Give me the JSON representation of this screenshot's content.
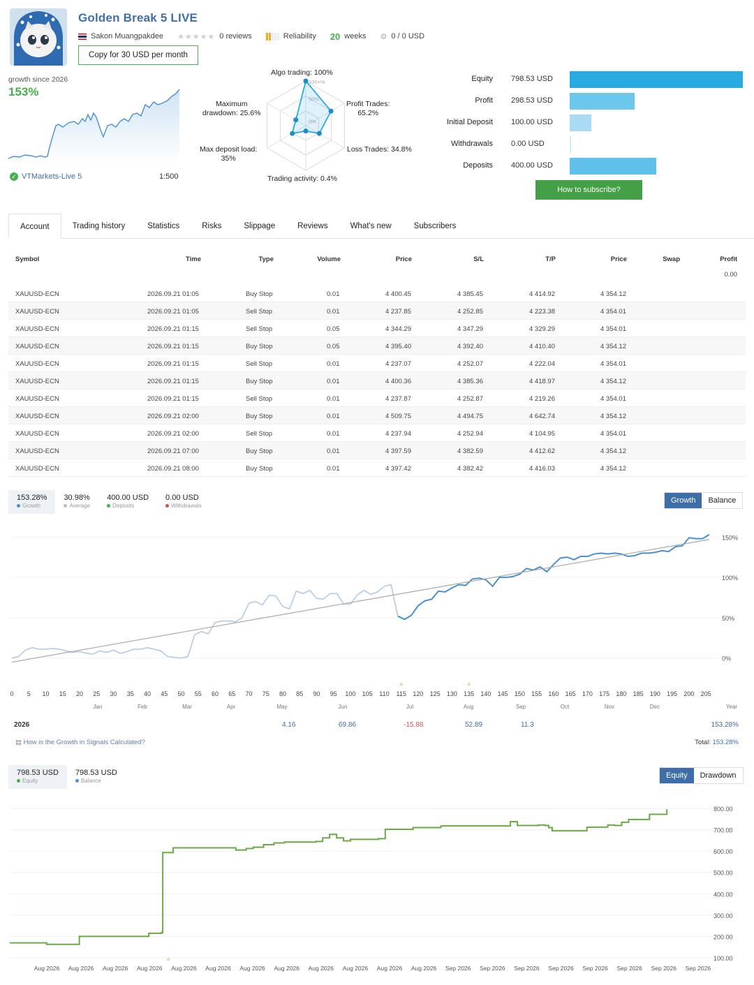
{
  "header": {
    "title": "Golden Break 5 LIVE",
    "author": "Sakon Muangpakdee",
    "reviews": "0 reviews",
    "reliability": "Reliability",
    "weeks_num": "20",
    "weeks_label": "weeks",
    "subscribers_usd": "0 / 0 USD",
    "copy_button": "Copy for 30 USD per month"
  },
  "growth_mini": {
    "label": "growth since 2026",
    "value": "153%",
    "broker": "VTMarkets-Live 5",
    "leverage": "1:500"
  },
  "radar": {
    "algo": "Algo trading: 100%",
    "profit_trades": "Profit Trades:\n65.2%",
    "loss_trades": "Loss Trades: 34.8%",
    "activity": "Trading activity: 0.4%",
    "deposit_load": "Max deposit load:\n35%",
    "drawdown": "Maximum\ndrawdown: 25.6%",
    "ring_100": "100+%",
    "ring_50": "50%",
    "ring_0": "0%",
    "values": [
      1.0,
      0.652,
      0.348,
      0.004,
      0.35,
      0.256
    ]
  },
  "stats": [
    {
      "label": "Equity",
      "value": "798.53 USD",
      "amount": 798.53,
      "color": "#29abe2"
    },
    {
      "label": "Profit",
      "value": "298.53 USD",
      "amount": 298.53,
      "color": "#6cc7ec"
    },
    {
      "label": "Initial Deposit",
      "value": "100.00 USD",
      "amount": 100.0,
      "color": "#a9dcf4"
    },
    {
      "label": "Withdrawals",
      "value": "0.00 USD",
      "amount": 0,
      "color": "#cfeaf8"
    },
    {
      "label": "Deposits",
      "value": "400.00 USD",
      "amount": 400.0,
      "color": "#5fc0ea"
    }
  ],
  "subscribe_button": "How to subscribe?",
  "tabs": [
    "Account",
    "Trading history",
    "Statistics",
    "Risks",
    "Slippage",
    "Reviews",
    "What's new",
    "Subscribers"
  ],
  "table": {
    "headers": [
      "Symbol",
      "Time",
      "Type",
      "Volume",
      "Price",
      "S/L",
      "T/P",
      "Price",
      "Swap",
      "Profit"
    ],
    "summary_profit": "0.00",
    "rows": [
      [
        "XAUUSD-ECN",
        "2026.09.21 01:05",
        "Buy Stop",
        "0.01",
        "4 400.45",
        "4 385.45",
        "4 414.92",
        "4 354.12"
      ],
      [
        "XAUUSD-ECN",
        "2026.09.21 01:05",
        "Sell Stop",
        "0.01",
        "4 237.85",
        "4 252.85",
        "4 223.38",
        "4 354.01"
      ],
      [
        "XAUUSD-ECN",
        "2026.09.21 01:15",
        "Sell Stop",
        "0.05",
        "4 344.29",
        "4 347.29",
        "4 329.29",
        "4 354.01"
      ],
      [
        "XAUUSD-ECN",
        "2026.09.21 01:15",
        "Buy Stop",
        "0.05",
        "4 395.40",
        "4 392.40",
        "4 410.40",
        "4 354.12"
      ],
      [
        "XAUUSD-ECN",
        "2026.09.21 01:15",
        "Sell Stop",
        "0.01",
        "4 237.07",
        "4 252.07",
        "4 222.04",
        "4 354.01"
      ],
      [
        "XAUUSD-ECN",
        "2026.09.21 01:15",
        "Buy Stop",
        "0.01",
        "4 400.36",
        "4 385.36",
        "4 418.97",
        "4 354.12"
      ],
      [
        "XAUUSD-ECN",
        "2026.09.21 01:15",
        "Sell Stop",
        "0.01",
        "4 237.87",
        "4 252.87",
        "4 219.26",
        "4 354.01"
      ],
      [
        "XAUUSD-ECN",
        "2026.09.21 02:00",
        "Buy Stop",
        "0.01",
        "4 509.75",
        "4 494.75",
        "4 642.74",
        "4 354.12"
      ],
      [
        "XAUUSD-ECN",
        "2026.09.21 02:00",
        "Sell Stop",
        "0.01",
        "4 237.94",
        "4 252.94",
        "4 104.95",
        "4 354.01"
      ],
      [
        "XAUUSD-ECN",
        "2026.09.21 07:00",
        "Buy Stop",
        "0.01",
        "4 397.59",
        "4 382.59",
        "4 412.62",
        "4 354.12"
      ],
      [
        "XAUUSD-ECN",
        "2026.09.21 08:00",
        "Buy Stop",
        "0.01",
        "4 397.42",
        "4 382.42",
        "4 416.03",
        "4 354.12"
      ]
    ]
  },
  "growth_chart": {
    "legend": [
      {
        "value": "153.28%",
        "label": "Growth",
        "color": "#4a90d9"
      },
      {
        "value": "30.98%",
        "label": "Average",
        "color": "#bbbbbb"
      },
      {
        "value": "400.00 USD",
        "label": "Deposits",
        "color": "#46b04a"
      },
      {
        "value": "0.00 USD",
        "label": "Withdrawals",
        "color": "#e74c3c"
      }
    ],
    "toggle": [
      "Growth",
      "Balance"
    ],
    "year_label": "Year",
    "year": "2026",
    "monthly": [
      {
        "month": "May",
        "value": "4.16"
      },
      {
        "month": "Jun",
        "value": "69.86"
      },
      {
        "month": "Jul",
        "value": "-15.88"
      },
      {
        "month": "Aug",
        "value": "52.89"
      },
      {
        "month": "Sep",
        "value": "11.3"
      }
    ],
    "year_total": "153.28%",
    "how_link": "How is the Growth in Signals Calculated?",
    "total_label": "Total:",
    "total_value": "153.28%"
  },
  "chart_data": [
    {
      "type": "line",
      "title": "",
      "xlabel": "",
      "ylabel": "",
      "x_ticks": [
        0,
        5,
        10,
        15,
        20,
        25,
        30,
        35,
        40,
        45,
        50,
        55,
        60,
        65,
        70,
        75,
        80,
        85,
        90,
        95,
        100,
        105,
        110,
        115,
        120,
        125,
        130,
        135,
        140,
        145,
        150,
        155,
        160,
        165,
        170,
        175,
        180,
        185,
        190,
        195,
        200,
        205
      ],
      "months": [
        "Jan",
        "Feb",
        "Mar",
        "Apr",
        "May",
        "Jun",
        "Jul",
        "Aug",
        "Sep",
        "Oct",
        "Nov",
        "Dec"
      ],
      "y_ticks": [
        "0%",
        "50%",
        "100%",
        "150%"
      ],
      "ylim": [
        -8,
        158
      ],
      "xlim": [
        0,
        206
      ],
      "series": [
        {
          "color": "#4a8fd0",
          "x": [
            0,
            2,
            4,
            6,
            8,
            10,
            12,
            14,
            16,
            18,
            20,
            22,
            24,
            26,
            28,
            30,
            32,
            34,
            36,
            38,
            40,
            42,
            44,
            46,
            48,
            50,
            52,
            54,
            56,
            58,
            60,
            62,
            64,
            66,
            68,
            70,
            72,
            74,
            76,
            78,
            80,
            82,
            84,
            86,
            88,
            90,
            92,
            94,
            96,
            98,
            100,
            102,
            104,
            106,
            108,
            110,
            112,
            114,
            116,
            118,
            120,
            122,
            124,
            126,
            128,
            130,
            132,
            134,
            136,
            138,
            140,
            142,
            144,
            146,
            148,
            150,
            152,
            154,
            156,
            158,
            160,
            162,
            164,
            166,
            168,
            170,
            172,
            174,
            176,
            178,
            180,
            182,
            184,
            186,
            188,
            190,
            192,
            194,
            196,
            198,
            200,
            202,
            204,
            206
          ],
          "y": [
            0,
            2,
            10,
            13,
            11,
            11,
            12,
            11,
            9,
            7,
            8,
            6,
            5,
            9,
            7,
            10,
            6,
            8,
            11,
            11,
            13,
            11,
            9,
            2,
            1,
            0,
            2,
            29,
            33,
            30,
            44,
            46,
            46,
            45,
            50,
            68,
            70,
            66,
            78,
            77,
            64,
            61,
            83,
            80,
            84,
            74,
            73,
            80,
            80,
            67,
            67,
            78,
            84,
            79,
            82,
            89,
            91,
            52,
            48,
            53,
            65,
            71,
            73,
            83,
            82,
            87,
            91,
            90,
            98,
            99,
            97,
            89,
            100,
            100,
            101,
            104,
            111,
            109,
            113,
            107,
            116,
            124,
            125,
            122,
            126,
            126,
            129,
            130,
            129,
            130,
            129,
            126,
            127,
            130,
            130,
            131,
            133,
            132,
            138,
            139,
            149,
            148,
            148,
            153
          ],
          "faded_until_x": 120
        },
        {
          "name": "Average",
          "color": "#a0a0a0",
          "x": [
            0,
            206
          ],
          "y": [
            -5,
            147
          ]
        }
      ]
    },
    {
      "type": "line",
      "title": "",
      "xlabel": "",
      "ylabel": "",
      "x_ticks": [
        "Aug 2026",
        "Aug 2026",
        "Aug 2026",
        "Aug 2026",
        "Aug 2026",
        "Aug 2026",
        "Aug 2026",
        "Aug 2026",
        "Aug 2026",
        "Aug 2026",
        "Aug 2026",
        "Aug 2026",
        "Sep 2026",
        "Sep 2026",
        "Sep 2026",
        "Sep 2026",
        "Sep 2026",
        "Sep 2026",
        "Sep 2026",
        "Sep 2026"
      ],
      "y_ticks": [
        "100.00",
        "200.00",
        "300.00",
        "400.00",
        "500.00",
        "600.00",
        "700.00",
        "800.00"
      ],
      "ylim": [
        100,
        800
      ],
      "xlim": [
        0,
        100
      ],
      "series": [
        {
          "name": "Equity",
          "color": "#6aaa45",
          "step": true,
          "x": [
            0,
            5,
            5.3,
            10,
            20,
            21.8,
            22,
            23.5,
            31,
            32.5,
            34,
            35,
            36.5,
            38,
            39.5,
            44,
            45,
            46,
            47,
            48,
            49,
            53,
            54,
            57,
            58,
            61,
            62,
            71,
            72,
            73,
            76,
            77,
            77.5,
            78,
            83,
            85,
            86,
            87,
            88,
            89,
            92,
            94.5
          ],
          "y": [
            170,
            170,
            163,
            200,
            215,
            218,
            593,
            615,
            615,
            605,
            612,
            618,
            630,
            638,
            642,
            645,
            662,
            678,
            662,
            648,
            655,
            658,
            702,
            702,
            710,
            710,
            718,
            718,
            738,
            720,
            722,
            720,
            710,
            695,
            712,
            712,
            722,
            720,
            735,
            748,
            772,
            796
          ]
        },
        {
          "name": "Balance",
          "color": "#4a90d9",
          "x": [],
          "y": []
        }
      ]
    }
  ],
  "equity_chart": {
    "legend": [
      {
        "value": "798.53 USD",
        "label": "Equity",
        "color": "#46b04a"
      },
      {
        "value": "798.53 USD",
        "label": "Balance",
        "color": "#4a90d9"
      }
    ],
    "toggle": [
      "Equity",
      "Drawdown"
    ]
  }
}
